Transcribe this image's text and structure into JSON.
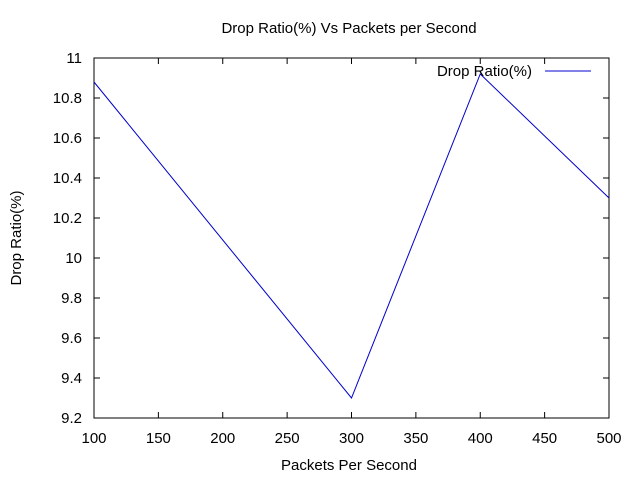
{
  "chart_data": {
    "type": "line",
    "title": "Drop Ratio(%) Vs Packets per Second",
    "xlabel": "Packets Per Second",
    "ylabel": "Drop Ratio(%)",
    "xlim": [
      100,
      500
    ],
    "ylim": [
      9.2,
      11
    ],
    "x_ticks": [
      "100",
      "150",
      "200",
      "250",
      "300",
      "350",
      "400",
      "450",
      "500"
    ],
    "y_ticks": [
      "9.2",
      "9.4",
      "9.6",
      "9.8",
      "10",
      "10.2",
      "10.4",
      "10.6",
      "10.8",
      "11"
    ],
    "grid": false,
    "legend_position": "top-right",
    "series": [
      {
        "name": "Drop Ratio(%)",
        "color": "#0000cc",
        "x": [
          100,
          300,
          400,
          500
        ],
        "y": [
          10.88,
          9.3,
          10.92,
          10.3
        ]
      }
    ]
  }
}
